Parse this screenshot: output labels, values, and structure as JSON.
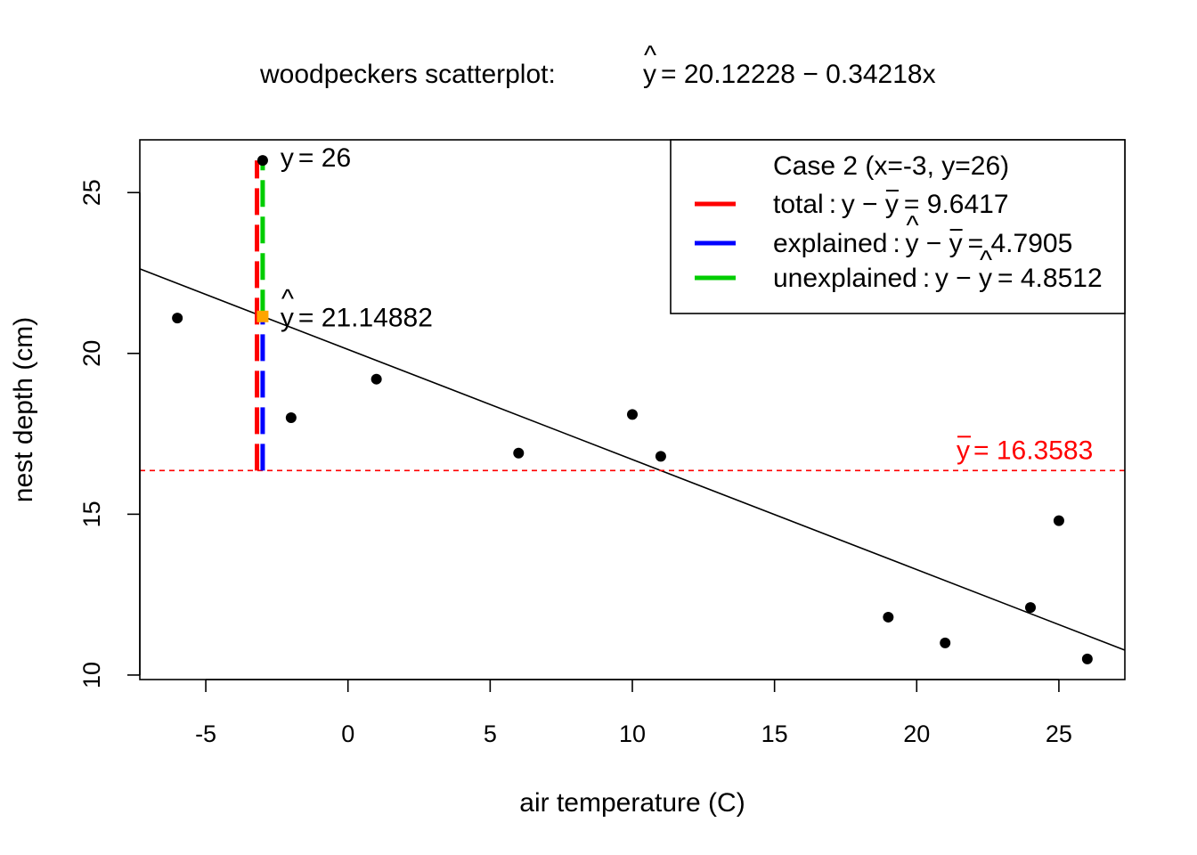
{
  "chart_data": {
    "type": "scatter",
    "title": {
      "prefix": "woodpeckers scatterplot: ",
      "hat_var": "y",
      "equation": "= 20.12228 − 0.34218x"
    },
    "xlabel": "air temperature (C)",
    "ylabel": "nest depth (cm)",
    "xlim": [
      -7.32,
      27.32
    ],
    "ylim": [
      9.86,
      26.64
    ],
    "x_ticks": [
      -5,
      0,
      5,
      10,
      15,
      20,
      25
    ],
    "y_ticks": [
      10,
      15,
      20,
      25
    ],
    "grid": false,
    "points": [
      {
        "x": -6,
        "y": 21.1
      },
      {
        "x": -3,
        "y": 26
      },
      {
        "x": -2,
        "y": 18
      },
      {
        "x": 1,
        "y": 19.2
      },
      {
        "x": 6,
        "y": 16.9
      },
      {
        "x": 10,
        "y": 18.1
      },
      {
        "x": 11,
        "y": 16.8
      },
      {
        "x": 19,
        "y": 11.8
      },
      {
        "x": 21,
        "y": 11
      },
      {
        "x": 24,
        "y": 12.1
      },
      {
        "x": 25,
        "y": 14.8
      },
      {
        "x": 26,
        "y": 10.5
      }
    ],
    "regression": {
      "intercept": 20.12228,
      "slope": -0.34218,
      "color": "#000000"
    },
    "mean_line": {
      "y": 16.3583,
      "color": "#ff0000",
      "label_var": "y",
      "label_value": "= 16.3583"
    },
    "highlight": {
      "x": -3,
      "y": 26,
      "yhat": 21.14882,
      "y_label_var": "y",
      "y_label_value": "= 26",
      "yhat_label_var": "y",
      "yhat_label_value": "= 21.14882",
      "yhat_marker_color": "#ffa500"
    },
    "segments": [
      {
        "name": "total",
        "from": 16.3583,
        "to": 26,
        "color": "#ff0000",
        "x_offset": -0.2
      },
      {
        "name": "explained",
        "from": 16.3583,
        "to": 21.14882,
        "color": "#0000ff",
        "x_offset": 0
      },
      {
        "name": "unexplained",
        "from": 21.14882,
        "to": 26,
        "color": "#00cd00",
        "x_offset": 0
      }
    ],
    "legend": {
      "placement": "top-right",
      "title": "Case 2 (x=-3, y=26)",
      "entries": [
        {
          "name": "total",
          "expr": "y − y",
          "hat_pos": "",
          "bar_pos": "2",
          "value": "= 9.6417",
          "color": "#ff0000"
        },
        {
          "name": "explained",
          "expr": "y − y",
          "hat_pos": "1",
          "bar_pos": "2",
          "value": "= 4.7905",
          "color": "#0000ff"
        },
        {
          "name": "unexplained",
          "expr": "y − y",
          "hat_pos": "2",
          "bar_pos": "",
          "value": "= 4.8512",
          "color": "#00cd00"
        }
      ]
    }
  }
}
